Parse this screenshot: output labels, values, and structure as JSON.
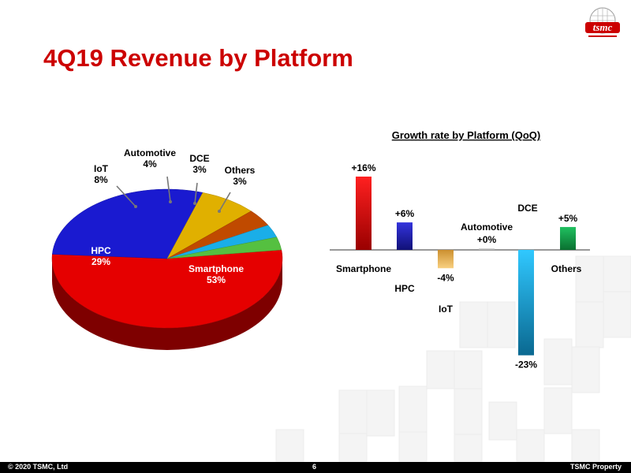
{
  "slide": {
    "title": "4Q19 Revenue by Platform",
    "logo_text": "tsmc",
    "footer_left": "© 2020 TSMC, Ltd",
    "footer_page": "6",
    "footer_right": "TSMC Property"
  },
  "colors": {
    "title": "#cc0000",
    "smartphone": "#e50000",
    "hpc": "#1a1ad0",
    "iot": "#e0b000",
    "automotive": "#c04a00",
    "dce": "#1aaee8",
    "others": "#55c040"
  },
  "chart_data": [
    {
      "type": "pie",
      "title": "",
      "slices": [
        {
          "label": "Smartphone",
          "value": 53,
          "value_label": "53%",
          "color": "#e50000"
        },
        {
          "label": "HPC",
          "value": 29,
          "value_label": "29%",
          "color": "#1a1ad0"
        },
        {
          "label": "IoT",
          "value": 8,
          "value_label": "8%",
          "color": "#e0b000"
        },
        {
          "label": "Automotive",
          "value": 4,
          "value_label": "4%",
          "color": "#c04a00"
        },
        {
          "label": "DCE",
          "value": 3,
          "value_label": "3%",
          "color": "#1aaee8"
        },
        {
          "label": "Others",
          "value": 3,
          "value_label": "3%",
          "color": "#55c040"
        }
      ],
      "style": "3d"
    },
    {
      "type": "bar",
      "title": "Growth rate by Platform (QoQ)",
      "categories": [
        "Smartphone",
        "HPC",
        "IoT",
        "Automotive",
        "DCE",
        "Others"
      ],
      "values": [
        16,
        6,
        -4,
        0,
        -23,
        5
      ],
      "value_labels": [
        "+16%",
        "+6%",
        "-4%",
        "+0%",
        "-23%",
        "+5%"
      ],
      "colors": [
        "#e50000",
        "#2222b8",
        "#e8b050",
        "#cccccc",
        "#1aa8e0",
        "#1aaa50"
      ],
      "ylim": [
        -23,
        16
      ],
      "grid": false
    }
  ]
}
